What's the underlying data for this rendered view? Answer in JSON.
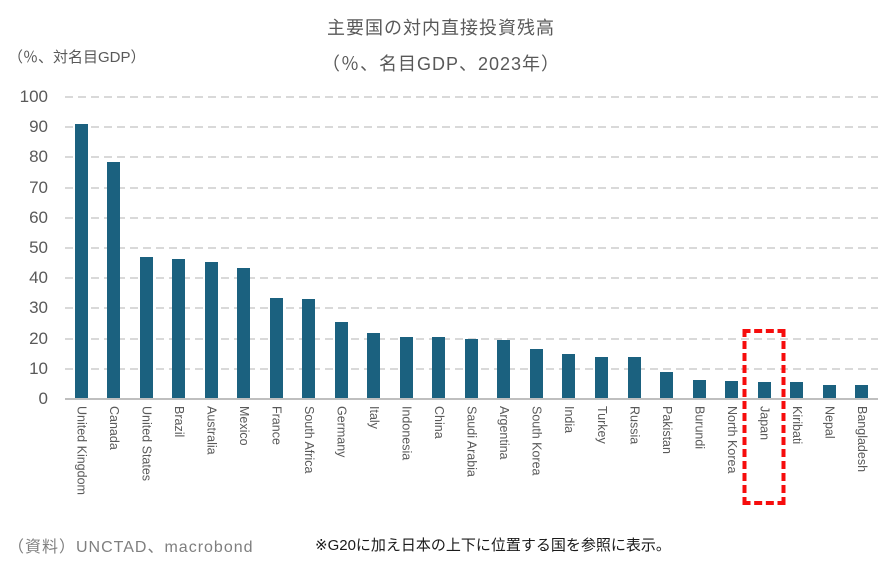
{
  "header": {
    "title": "主要国の対内直接投資残高",
    "subtitle": "（％、名目GDP、2023年）",
    "y_axis_unit": "（％、対名目GDP）"
  },
  "chart_data": {
    "type": "bar",
    "title": "主要国の対内直接投資残高",
    "subtitle": "（％、名目GDP、2023年）",
    "ylabel": "（％、対名目GDP）",
    "xlabel": "",
    "ylim": [
      0,
      100
    ],
    "yticks": [
      0,
      10,
      20,
      30,
      40,
      50,
      60,
      70,
      80,
      90,
      100
    ],
    "grid": "horizontal-dashed",
    "legend": "none",
    "bar_color": "#1b617f",
    "categories": [
      "United Kingdom",
      "Canada",
      "United States",
      "Brazil",
      "Australia",
      "Mexico",
      "France",
      "South Africa",
      "Germany",
      "Italy",
      "Indonesia",
      "China",
      "Saudi Arabia",
      "Argentina",
      "South Korea",
      "India",
      "Turkey",
      "Russia",
      "Pakistan",
      "Burundi",
      "North Korea",
      "Japan",
      "Kiribati",
      "Nepal",
      "Bangladesh"
    ],
    "values": [
      91,
      78.5,
      47,
      46.5,
      45.5,
      43.5,
      33.5,
      33,
      25.5,
      22,
      20.5,
      20.5,
      20,
      19.5,
      16.5,
      15,
      14,
      14,
      9,
      6.3,
      6.0,
      5.5,
      5.5,
      4.5,
      4.5
    ],
    "highlight": {
      "category": "Japan",
      "style": "red-dashed-box",
      "color": "#f60d0d"
    }
  },
  "footer": {
    "source": "（資料）UNCTAD、macrobond",
    "note": "※G20に加え日本の上下に位置する国を参照に表示。"
  },
  "colors": {
    "bar": "#1b617f",
    "grid": "#d9d9d9",
    "axis": "#bfbfbf",
    "text_gray": "#595959",
    "highlight_red": "#f60d0d"
  }
}
